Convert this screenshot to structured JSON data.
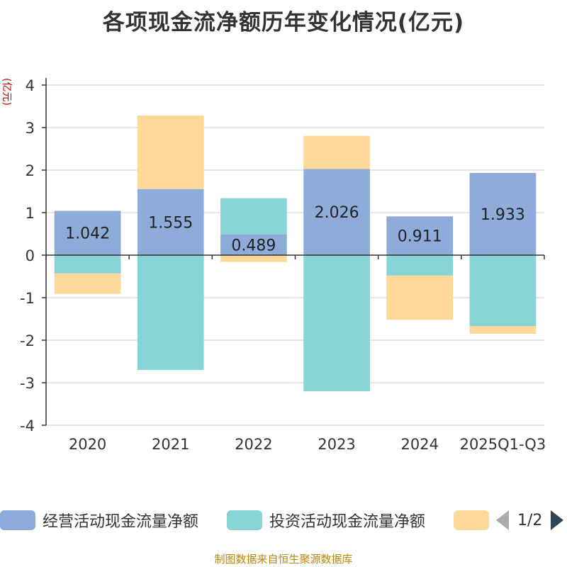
{
  "chart_data": {
    "type": "bar",
    "stacked": true,
    "title": "各项现金流净额历年变化情况(亿元)",
    "ylabel": "(亿元)",
    "ylim": [
      -4,
      4
    ],
    "yticks": [
      4,
      3,
      2,
      1,
      0,
      -1,
      -2,
      -3,
      -4
    ],
    "categories": [
      "2020",
      "2021",
      "2022",
      "2023",
      "2024",
      "2025Q1-Q3"
    ],
    "series": [
      {
        "name": "经营活动现金流量净额",
        "color": "#8eacd9",
        "values": [
          1.042,
          1.555,
          0.489,
          2.026,
          0.911,
          1.933
        ],
        "show_labels": true
      },
      {
        "name": "投资活动现金流量净额",
        "color": "#87d4d6",
        "values": [
          -0.43,
          -2.7,
          0.85,
          -3.2,
          -0.48,
          -1.67
        ],
        "show_labels": false
      },
      {
        "name": "",
        "color": "#fdd898",
        "values": [
          -0.48,
          1.73,
          -0.16,
          0.78,
          -1.04,
          -0.18
        ],
        "show_labels": false
      }
    ],
    "grid": true,
    "legend_position": "bottom"
  },
  "legend": {
    "page": "1/2"
  },
  "source": "制图数据来自恒生聚源数据库"
}
